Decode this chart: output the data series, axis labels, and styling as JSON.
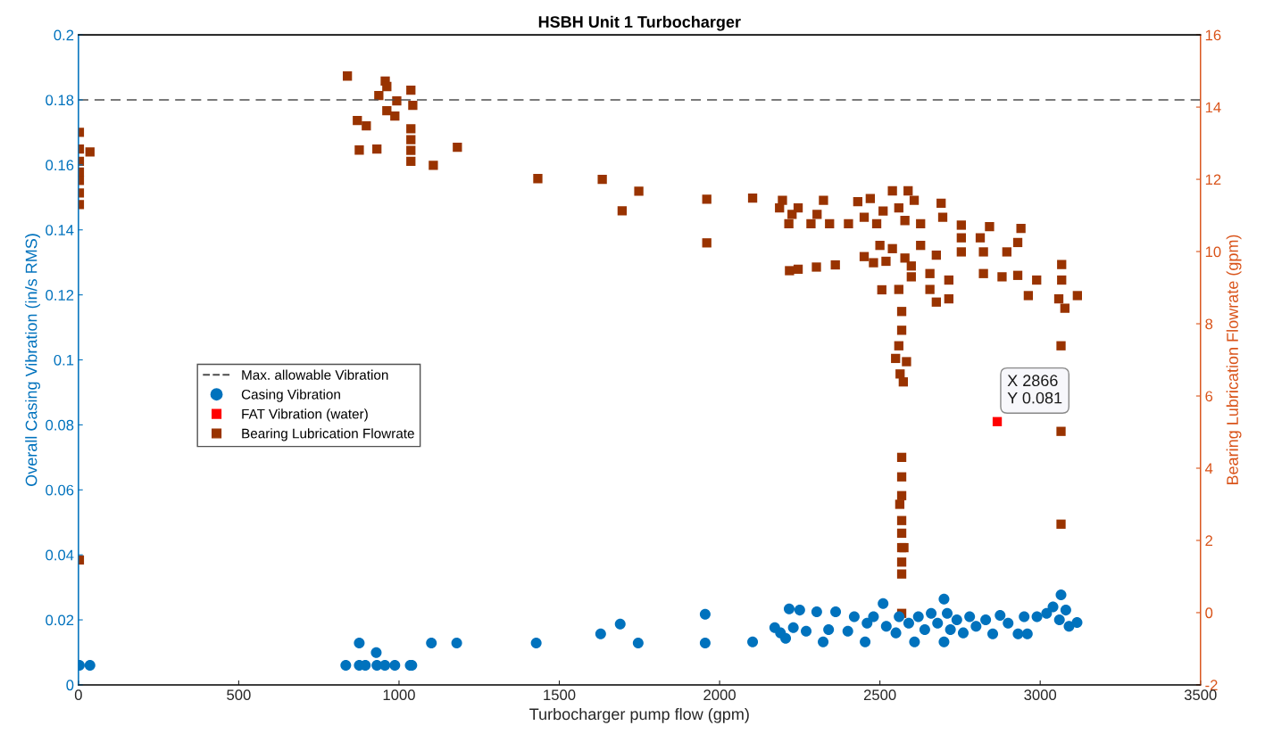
{
  "chart_data": {
    "type": "scatter",
    "title": "HSBH Unit 1 Turbocharger",
    "xlabel": "Turbocharger pump flow (gpm)",
    "ylabel": "Overall Casing Vibration (in/s RMS)",
    "y2label": "Bearing Lubrication Flowrate (gpm)",
    "xlim": [
      0,
      3500
    ],
    "xticks": [
      0,
      500,
      1000,
      1500,
      2000,
      2500,
      3000,
      3500
    ],
    "ylim": [
      0,
      0.2
    ],
    "yticks": [
      0,
      0.02,
      0.04,
      0.06,
      0.08,
      0.1,
      0.12,
      0.14,
      0.16,
      0.18,
      0.2
    ],
    "y2lim": [
      -2,
      16
    ],
    "y2ticks": [
      -2,
      0,
      2,
      4,
      6,
      8,
      10,
      12,
      14,
      16
    ],
    "grid": false,
    "legend": "center left",
    "ref_lines": [
      {
        "axis": "y",
        "value": 0.18,
        "label": "Max. allowable Vibration",
        "color": "#4d4d4d",
        "line_style": "dashed"
      }
    ],
    "annotations": [
      {
        "text": "X 2866\nY 0.081",
        "x": 2866,
        "y": 0.081
      }
    ],
    "series": [
      {
        "name": "Casing Vibration",
        "marker": "circle",
        "color": "#0072bd",
        "axis": "y",
        "x": [
          3,
          36,
          834,
          876,
          895,
          931,
          956,
          987,
          1035,
          1040,
          876,
          929,
          1101,
          1180,
          1428,
          1629,
          1690,
          1746,
          1955,
          1955,
          2103,
          2217,
          2250,
          2303,
          2362,
          2172,
          2206,
          2190,
          2230,
          2270,
          2323,
          2340,
          2400,
          2420,
          2454,
          2460,
          2480,
          2510,
          2520,
          2550,
          2560,
          2590,
          2608,
          2620,
          2640,
          2660,
          2680,
          2700,
          2700,
          2710,
          2720,
          2740,
          2760,
          2780,
          2800,
          2830,
          2852,
          2875,
          2900,
          2931,
          2960,
          2950,
          2990,
          3020,
          3040,
          3065,
          3060,
          3080,
          3090,
          3115
        ],
        "values": [
          0.006,
          0.006,
          0.006,
          0.006,
          0.006,
          0.006,
          0.006,
          0.006,
          0.006,
          0.006,
          0.0129,
          0.0099,
          0.0129,
          0.0129,
          0.0129,
          0.0157,
          0.0187,
          0.0129,
          0.0217,
          0.0129,
          0.0132,
          0.0234,
          0.023,
          0.0225,
          0.0225,
          0.0176,
          0.0143,
          0.016,
          0.0176,
          0.0165,
          0.0132,
          0.017,
          0.0165,
          0.021,
          0.0132,
          0.019,
          0.021,
          0.025,
          0.018,
          0.016,
          0.021,
          0.019,
          0.0132,
          0.021,
          0.017,
          0.022,
          0.019,
          0.0264,
          0.0132,
          0.022,
          0.017,
          0.02,
          0.016,
          0.021,
          0.018,
          0.02,
          0.0157,
          0.0214,
          0.019,
          0.0157,
          0.0157,
          0.021,
          0.021,
          0.022,
          0.024,
          0.0277,
          0.02,
          0.023,
          0.018,
          0.0192
        ]
      },
      {
        "name": "FAT Vibration (water)",
        "marker": "square",
        "color": "#ff0000",
        "axis": "y",
        "x": [
          2866
        ],
        "values": [
          0.081
        ]
      },
      {
        "name": "Bearing Lubrication Flowrate",
        "marker": "square",
        "color": "#993300",
        "axis": "y2",
        "x": [
          3,
          3,
          3,
          3,
          36,
          3,
          3,
          3,
          3,
          839,
          957,
          962,
          937,
          993,
          1037,
          1043,
          962,
          987,
          870,
          898,
          876,
          931,
          1037,
          1037,
          1037,
          1037,
          1107,
          1182,
          1433,
          1634,
          1748,
          1696,
          1960,
          1960,
          2103,
          2196,
          2226,
          2187,
          2216,
          2245,
          2324,
          2304,
          2285,
          2343,
          2402,
          2431,
          2470,
          2451,
          2490,
          2510,
          2539,
          2588,
          2607,
          2559,
          2578,
          2627,
          2691,
          2696,
          2754,
          2842,
          2754,
          2813,
          2940,
          2930,
          2896,
          2451,
          2480,
          2500,
          2539,
          2578,
          2598,
          2519,
          2627,
          2676,
          2754,
          2823,
          2218,
          2245,
          2302,
          2361,
          2598,
          2656,
          2715,
          2823,
          2881,
          2930,
          2989,
          3067,
          3067,
          3058,
          3077,
          3116,
          2963,
          2506,
          2559,
          2676,
          2715,
          2656,
          2568,
          2568,
          2559,
          2549,
          2583,
          2563,
          2573,
          3065,
          2568,
          2568,
          2568,
          2562,
          2568,
          2568,
          2568,
          2575,
          2568,
          2568,
          2568,
          3065,
          3065
        ],
        "values": [
          13.3,
          12.84,
          12.5,
          12.2,
          12.76,
          11.97,
          11.62,
          11.3,
          1.46,
          14.86,
          14.72,
          14.57,
          14.32,
          14.17,
          14.47,
          14.05,
          13.9,
          13.75,
          13.63,
          13.48,
          12.81,
          12.84,
          13.4,
          13.1,
          12.8,
          12.5,
          12.39,
          12.89,
          12.02,
          12.0,
          11.67,
          11.13,
          11.45,
          10.24,
          11.48,
          11.42,
          11.03,
          11.21,
          10.77,
          11.21,
          11.42,
          11.03,
          10.77,
          10.77,
          10.77,
          11.38,
          11.47,
          10.95,
          10.77,
          11.12,
          11.68,
          11.68,
          11.42,
          11.21,
          10.86,
          10.77,
          11.34,
          10.95,
          10.73,
          10.69,
          10.38,
          10.38,
          10.64,
          10.25,
          9.99,
          9.86,
          9.69,
          10.17,
          10.08,
          9.82,
          9.6,
          9.73,
          10.17,
          9.9,
          9.99,
          9.99,
          9.47,
          9.51,
          9.57,
          9.63,
          9.3,
          9.39,
          9.21,
          9.39,
          9.3,
          9.34,
          9.21,
          9.64,
          9.21,
          8.69,
          8.43,
          8.78,
          8.78,
          8.94,
          8.95,
          8.6,
          8.69,
          8.95,
          8.34,
          7.82,
          7.39,
          7.04,
          6.95,
          6.61,
          6.39,
          7.39,
          4.3,
          3.76,
          3.24,
          3.0,
          2.55,
          2.2,
          1.8,
          1.8,
          1.4,
          1.07,
          -0.02,
          5.02,
          2.45
        ]
      }
    ]
  }
}
